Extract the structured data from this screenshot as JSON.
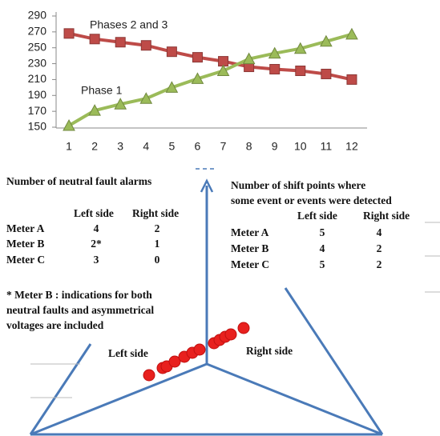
{
  "chart_data": {
    "type": "line",
    "categories": [
      "1",
      "2",
      "3",
      "4",
      "5",
      "6",
      "7",
      "8",
      "9",
      "10",
      "11",
      "12"
    ],
    "series": [
      {
        "name": "Phases 2 and 3",
        "color": "#be4b48",
        "marker": "square",
        "values": [
          268,
          261,
          257,
          253,
          245,
          238,
          233,
          226,
          223,
          221,
          217,
          210
        ]
      },
      {
        "name": "Phase 1",
        "color": "#9bbb59",
        "marker": "triangle",
        "values": [
          152,
          171,
          179,
          186,
          200,
          211,
          221,
          236,
          243,
          249,
          258,
          267
        ]
      }
    ],
    "ylim": [
      150,
      290
    ],
    "yticks": [
      150,
      170,
      190,
      210,
      230,
      250,
      270,
      290
    ],
    "grid": false
  },
  "left_table": {
    "title": "Number of neutral fault alarms",
    "header": [
      "Left side",
      "Right side"
    ],
    "rows": [
      [
        "Meter A",
        "4",
        "2"
      ],
      [
        "Meter B",
        "2*",
        "1"
      ],
      [
        "Meter C",
        "3",
        "0"
      ]
    ],
    "note": [
      "* Meter B : indications for both",
      " neutral faults and asymmetrical",
      "voltages are included"
    ]
  },
  "right_table": {
    "title": [
      "Number of shift points where",
      "some event or events were detected"
    ],
    "header": [
      "Left side",
      "Right side"
    ],
    "rows": [
      [
        "Meter A",
        "5",
        "4"
      ],
      [
        "Meter B",
        "4",
        "2"
      ],
      [
        "Meter C",
        "5",
        "2"
      ]
    ]
  },
  "diagram": {
    "left_label": "Left side",
    "right_label": "Right side"
  }
}
